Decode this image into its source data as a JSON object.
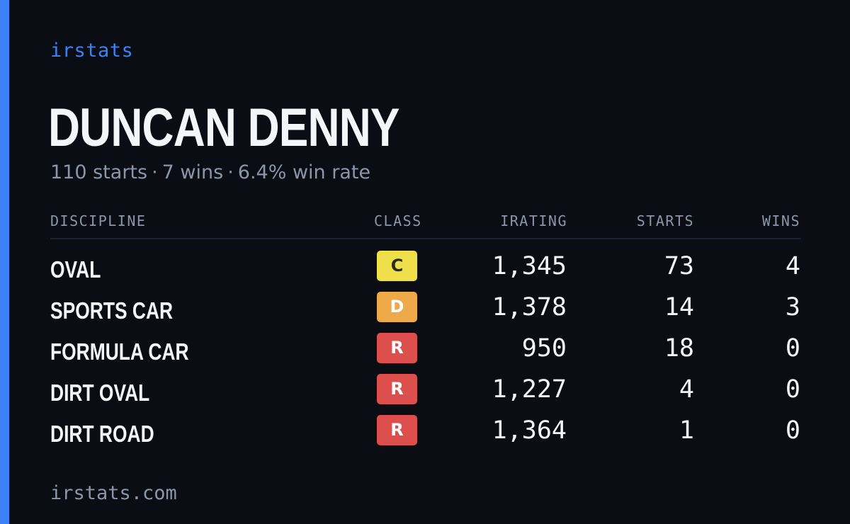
{
  "brand": "irstats",
  "driver": {
    "name": "DUNCAN DENNY",
    "summary": {
      "starts": "110 starts",
      "wins": "7 wins",
      "win_rate": "6.4% win rate",
      "separator": "·"
    }
  },
  "table": {
    "headers": {
      "discipline": "DISCIPLINE",
      "class": "CLASS",
      "irating": "IRATING",
      "starts": "STARTS",
      "wins": "WINS"
    },
    "rows": [
      {
        "discipline": "OVAL",
        "class": "C",
        "class_bg": "#eedf4b",
        "class_fg": "#2a2a1a",
        "irating": "1,345",
        "starts": "73",
        "wins": "4"
      },
      {
        "discipline": "SPORTS CAR",
        "class": "D",
        "class_bg": "#eeaa48",
        "class_fg": "#ffffff",
        "irating": "1,378",
        "starts": "14",
        "wins": "3"
      },
      {
        "discipline": "FORMULA CAR",
        "class": "R",
        "class_bg": "#dc4f4c",
        "class_fg": "#ffffff",
        "irating": "950",
        "starts": "18",
        "wins": "0"
      },
      {
        "discipline": "DIRT OVAL",
        "class": "R",
        "class_bg": "#dc4f4c",
        "class_fg": "#ffffff",
        "irating": "1,227",
        "starts": "4",
        "wins": "0"
      },
      {
        "discipline": "DIRT ROAD",
        "class": "R",
        "class_bg": "#dc4f4c",
        "class_fg": "#ffffff",
        "irating": "1,364",
        "starts": "1",
        "wins": "0"
      }
    ]
  },
  "footer": "irstats.com",
  "colors": {
    "background": "#0a0d14",
    "accent": "#3b82f6",
    "muted": "#8c96a8",
    "text": "#f4f6fa"
  }
}
